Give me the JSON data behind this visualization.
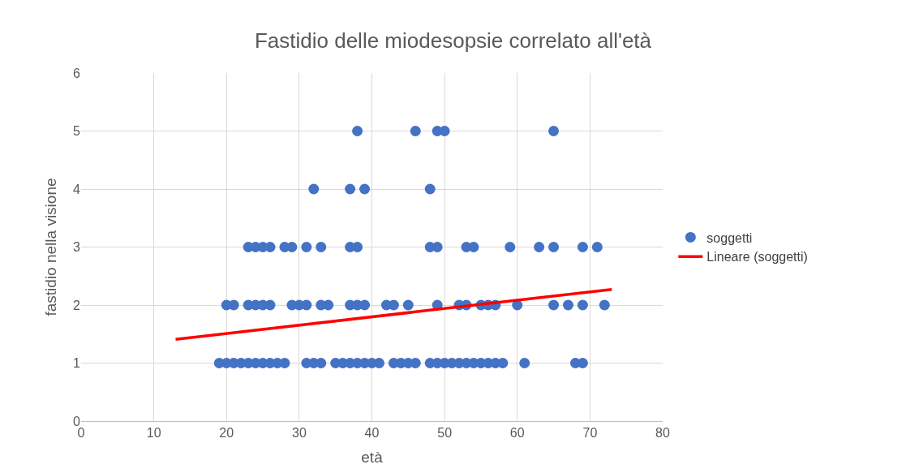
{
  "chart_data": {
    "type": "scatter",
    "title": "Fastidio delle miodesopsie correlato all'età",
    "xlabel": "età",
    "ylabel": "fastidio nella visione",
    "xlim": [
      0,
      80
    ],
    "xticks": [
      0,
      10,
      20,
      30,
      40,
      50,
      60,
      70,
      80
    ],
    "ylim": [
      0,
      6
    ],
    "yticks": [
      0,
      1,
      2,
      3,
      4,
      5,
      6
    ],
    "grid": true,
    "legend": "right",
    "marker": "circle",
    "series": [
      {
        "name": "soggetti",
        "color": "#4472c4",
        "x": [
          19,
          20,
          21,
          22,
          23,
          24,
          25,
          26,
          27,
          28,
          31,
          32,
          33,
          35,
          36,
          37,
          38,
          39,
          40,
          41,
          43,
          44,
          45,
          46,
          48,
          49,
          50,
          51,
          52,
          53,
          54,
          55,
          56,
          57,
          58,
          61,
          68,
          69,
          20,
          21,
          23,
          24,
          25,
          26,
          29,
          30,
          31,
          33,
          34,
          37,
          38,
          39,
          42,
          43,
          45,
          49,
          52,
          53,
          55,
          56,
          57,
          60,
          65,
          67,
          69,
          72,
          23,
          24,
          25,
          26,
          28,
          29,
          31,
          33,
          37,
          38,
          48,
          49,
          53,
          54,
          59,
          63,
          65,
          69,
          71,
          32,
          37,
          39,
          48,
          38,
          46,
          49,
          50,
          65
        ],
        "values": [
          1,
          1,
          1,
          1,
          1,
          1,
          1,
          1,
          1,
          1,
          1,
          1,
          1,
          1,
          1,
          1,
          1,
          1,
          1,
          1,
          1,
          1,
          1,
          1,
          1,
          1,
          1,
          1,
          1,
          1,
          1,
          1,
          1,
          1,
          1,
          1,
          1,
          1,
          2,
          2,
          2,
          2,
          2,
          2,
          2,
          2,
          2,
          2,
          2,
          2,
          2,
          2,
          2,
          2,
          2,
          2,
          2,
          2,
          2,
          2,
          2,
          2,
          2,
          2,
          2,
          2,
          3,
          3,
          3,
          3,
          3,
          3,
          3,
          3,
          3,
          3,
          3,
          3,
          3,
          3,
          3,
          3,
          3,
          3,
          3,
          4,
          4,
          4,
          4,
          5,
          5,
          5,
          5,
          5
        ]
      },
      {
        "name": "Lineare (soggetti)",
        "type": "line",
        "color": "#ff0000",
        "marker": "none",
        "x": [
          13,
          73
        ],
        "values": [
          1.41,
          2.27
        ]
      }
    ]
  }
}
